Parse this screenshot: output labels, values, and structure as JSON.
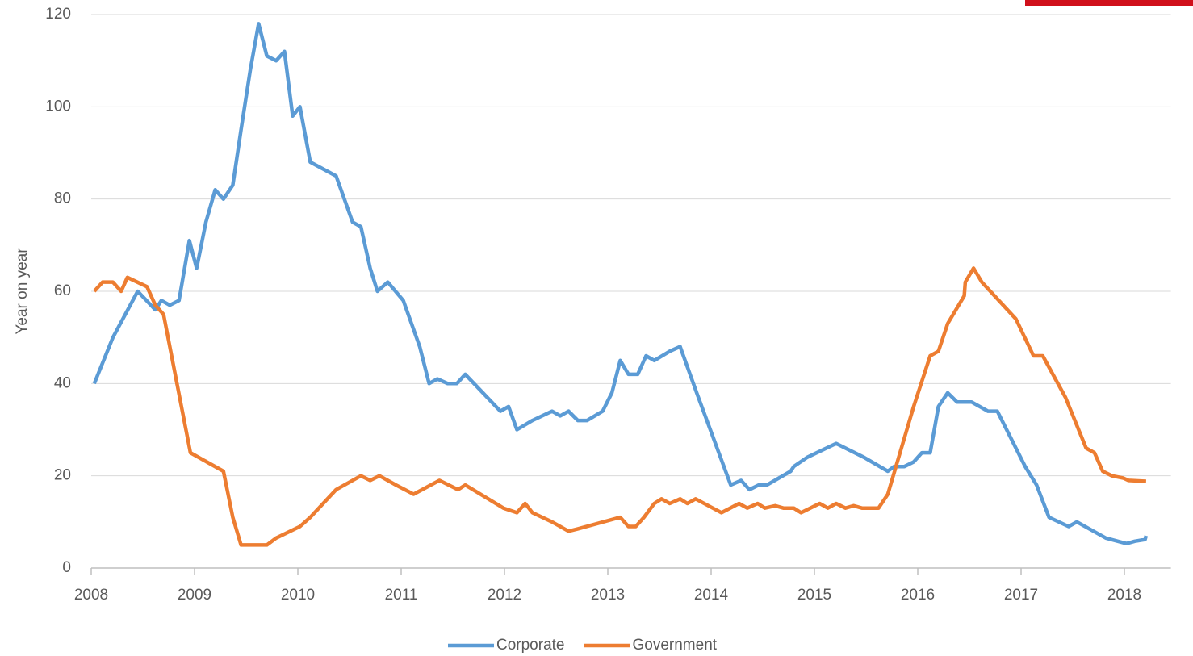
{
  "chart_data": {
    "type": "line",
    "y_label": "Year on year",
    "xlim": [
      2008,
      2018.45
    ],
    "xticks": [
      2008,
      2009,
      2010,
      2011,
      2012,
      2013,
      2014,
      2015,
      2016,
      2017,
      2018
    ],
    "ylim": [
      0,
      120
    ],
    "yticks": [
      0,
      20,
      40,
      60,
      80,
      100,
      120
    ],
    "grid": true,
    "legend": "bottom",
    "series": [
      {
        "name": "Corporate",
        "color": "#5b9bd5",
        "x": [
          2008.03,
          2008.21,
          2008.45,
          2008.62,
          2008.68,
          2008.76,
          2008.85,
          2008.95,
          2009.02,
          2009.11,
          2009.2,
          2009.28,
          2009.37,
          2009.45,
          2009.54,
          2009.62,
          2009.7,
          2009.79,
          2009.87,
          2009.95,
          2010.02,
          2010.12,
          2010.37,
          2010.53,
          2010.61,
          2010.7,
          2010.77,
          2010.87,
          2011.02,
          2011.18,
          2011.27,
          2011.35,
          2011.45,
          2011.54,
          2011.62,
          2011.96,
          2012.04,
          2012.12,
          2012.27,
          2012.46,
          2012.54,
          2012.62,
          2012.71,
          2012.8,
          2012.95,
          2013.04,
          2013.12,
          2013.2,
          2013.29,
          2013.37,
          2013.45,
          2013.6,
          2013.7,
          2013.86,
          2014.19,
          2014.29,
          2014.37,
          2014.46,
          2014.54,
          2014.77,
          2014.8,
          2014.93,
          2015.21,
          2015.48,
          2015.71,
          2015.77,
          2015.87,
          2015.96,
          2016.04,
          2016.12,
          2016.2,
          2016.29,
          2016.38,
          2016.52,
          2016.68,
          2016.77,
          2017.04,
          2017.15,
          2017.27,
          2017.46,
          2017.54,
          2017.82,
          2018.02,
          2018.1,
          2018.2,
          2018.21
        ],
        "values": [
          40,
          50,
          60,
          56,
          58,
          57,
          58,
          71,
          65,
          75,
          82,
          80,
          83,
          95,
          108,
          118,
          111,
          110,
          112,
          98,
          100,
          88,
          85,
          75,
          74,
          65,
          60,
          62,
          58,
          48,
          40,
          41,
          40,
          40,
          42,
          34,
          35,
          30,
          32,
          34,
          33,
          34,
          32,
          32,
          34,
          38,
          45,
          42,
          42,
          46,
          45,
          47,
          48,
          38,
          18,
          19,
          17,
          18,
          18,
          21,
          22,
          24,
          27,
          24,
          21,
          22,
          22,
          23,
          25,
          25,
          35,
          38,
          36,
          36,
          34,
          34,
          22,
          18,
          11,
          9,
          10,
          6.5,
          5.3,
          5.8,
          6.2,
          7
        ]
      },
      {
        "name": "Government",
        "color": "#ed7d31",
        "x": [
          2008.03,
          2008.11,
          2008.21,
          2008.29,
          2008.35,
          2008.54,
          2008.62,
          2008.7,
          2008.96,
          2009.28,
          2009.37,
          2009.45,
          2009.7,
          2009.79,
          2010.02,
          2010.12,
          2010.37,
          2010.61,
          2010.7,
          2010.79,
          2010.95,
          2011.12,
          2011.37,
          2011.55,
          2011.62,
          2011.99,
          2012.12,
          2012.2,
          2012.27,
          2012.46,
          2012.62,
          2012.71,
          2013.12,
          2013.2,
          2013.27,
          2013.35,
          2013.45,
          2013.52,
          2013.6,
          2013.7,
          2013.77,
          2013.85,
          2014.1,
          2014.27,
          2014.35,
          2014.45,
          2014.52,
          2014.62,
          2014.7,
          2014.8,
          2014.87,
          2015.05,
          2015.13,
          2015.21,
          2015.3,
          2015.38,
          2015.46,
          2015.62,
          2015.71,
          2015.96,
          2016.12,
          2016.2,
          2016.29,
          2016.45,
          2016.46,
          2016.54,
          2016.62,
          2016.95,
          2017.12,
          2017.21,
          2017.43,
          2017.63,
          2017.71,
          2017.79,
          2017.88,
          2017.99,
          2018.04,
          2018.21
        ],
        "values": [
          60,
          62,
          62,
          60,
          63,
          61,
          57,
          55,
          25,
          21,
          11,
          5,
          5,
          6.5,
          9,
          11,
          17,
          20,
          19,
          20,
          18,
          16,
          19,
          17,
          18,
          13,
          12,
          14,
          12,
          10,
          8,
          8.5,
          11,
          9,
          9,
          11,
          14,
          15,
          14,
          15,
          14,
          15,
          12,
          14,
          13,
          14,
          13,
          13.5,
          13,
          13,
          12,
          14,
          13,
          14,
          13,
          13.5,
          13,
          13,
          16,
          35,
          46,
          47,
          53,
          59,
          62,
          65,
          62,
          54,
          46,
          46,
          37,
          26,
          25,
          21,
          20,
          19.5,
          19,
          18.8
        ]
      }
    ]
  }
}
